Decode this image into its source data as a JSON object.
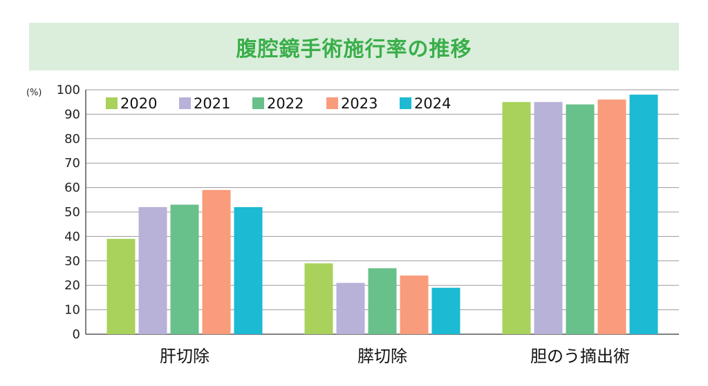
{
  "chart_data": {
    "type": "bar",
    "title": "腹腔鏡手術施行率の推移",
    "ylabel": "(%)",
    "xlabel": "",
    "ylim": [
      0,
      100
    ],
    "yticks": [
      0,
      10,
      20,
      30,
      40,
      50,
      60,
      70,
      80,
      90,
      100
    ],
    "grid": true,
    "legend_position": "top-left",
    "categories": [
      "肝切除",
      "膵切除",
      "胆のう摘出術"
    ],
    "series": [
      {
        "name": "2020",
        "color": "#a8d25b",
        "values": [
          39,
          29,
          95
        ]
      },
      {
        "name": "2021",
        "color": "#b8b2d9",
        "values": [
          52,
          21,
          95
        ]
      },
      {
        "name": "2022",
        "color": "#68c08a",
        "values": [
          53,
          27,
          94
        ]
      },
      {
        "name": "2023",
        "color": "#f89c7c",
        "values": [
          59,
          24,
          96
        ]
      },
      {
        "name": "2024",
        "color": "#1cbad3",
        "values": [
          52,
          19,
          98
        ]
      }
    ]
  }
}
